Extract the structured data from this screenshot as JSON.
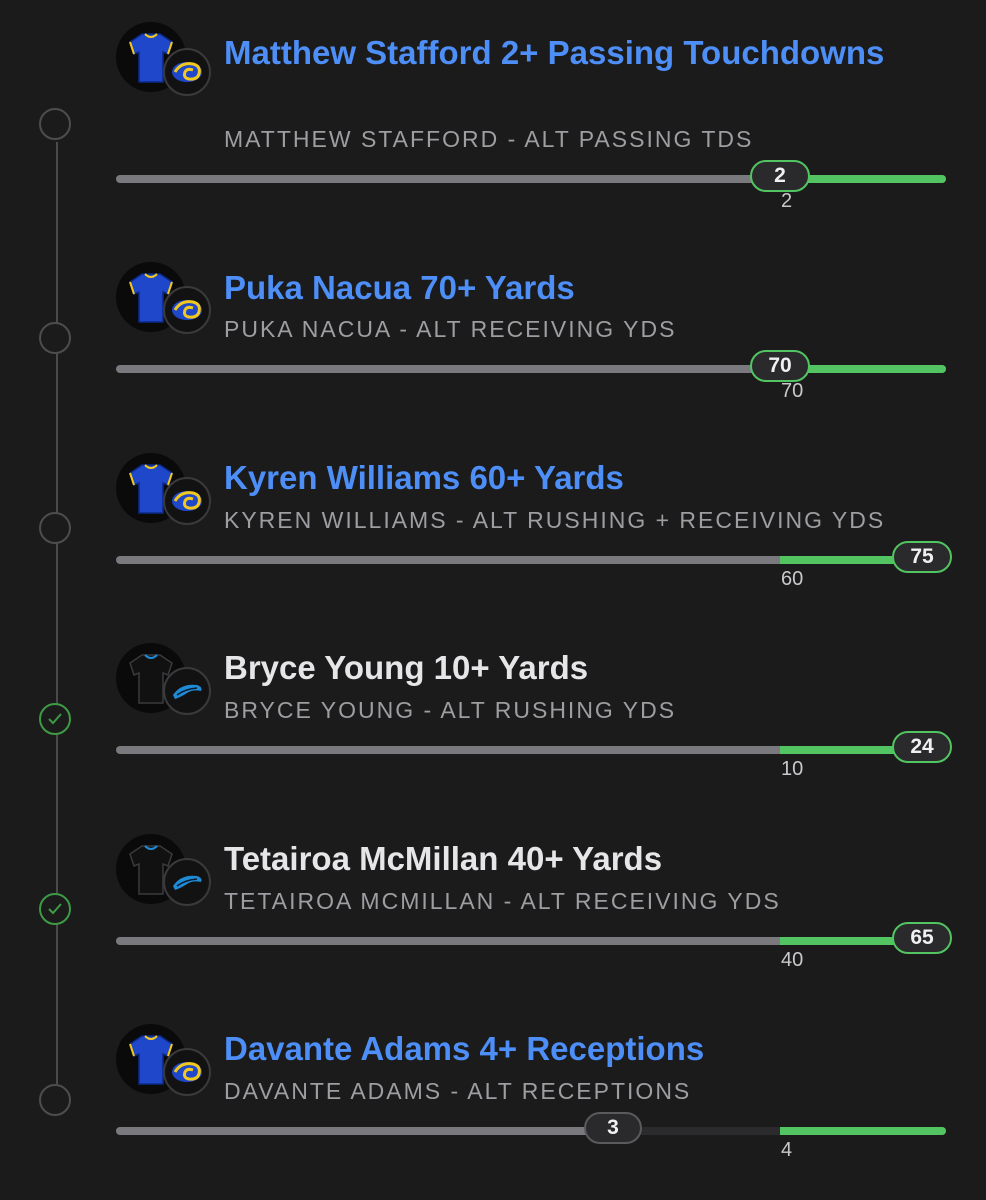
{
  "legs": [
    {
      "title": "Matthew Stafford 2+ Passing Touchdowns",
      "subtitle": "MATTHEW STAFFORD - ALT PASSING TDS",
      "team": "rams",
      "status": "pending",
      "progress_value": "2",
      "threshold": "2"
    },
    {
      "title": "Puka Nacua 70+ Yards",
      "subtitle": "PUKA NACUA - ALT RECEIVING YDS",
      "team": "rams",
      "status": "pending",
      "progress_value": "70",
      "threshold": "70"
    },
    {
      "title": "Kyren Williams 60+ Yards",
      "subtitle": "KYREN WILLIAMS - ALT RUSHING + RECEIVING YDS",
      "team": "rams",
      "status": "pending",
      "progress_value": "75",
      "threshold": "60"
    },
    {
      "title": "Bryce Young 10+ Yards",
      "subtitle": "BRYCE YOUNG - ALT RUSHING YDS",
      "team": "panthers",
      "status": "won",
      "progress_value": "24",
      "threshold": "10"
    },
    {
      "title": "Tetairoa McMillan 40+ Yards",
      "subtitle": "TETAIROA MCMILLAN - ALT RECEIVING YDS",
      "team": "panthers",
      "status": "won",
      "progress_value": "65",
      "threshold": "40"
    },
    {
      "title": "Davante Adams 4+ Receptions",
      "subtitle": "DAVANTE ADAMS - ALT RECEPTIONS",
      "team": "rams",
      "status": "pending",
      "progress_value": "3",
      "threshold": "4"
    }
  ],
  "colors": {
    "background": "#1b1b1c",
    "title_pending": "#4d8ef7",
    "title_won": "#e6e6e8",
    "progress_green": "#52c462",
    "track_gray": "#7a7a7e",
    "rams_blue": "#1e47c9",
    "rams_gold": "#f2c81e",
    "panthers_blue": "#1f8ad6"
  },
  "icons": {
    "won": "check-circle-icon",
    "pending": "empty-circle-icon",
    "jersey": "jersey-icon",
    "rams_logo": "rams-horn-logo-icon",
    "panthers_logo": "panthers-logo-icon"
  }
}
